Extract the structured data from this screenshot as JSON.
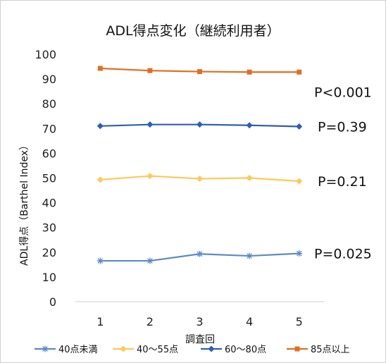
{
  "chart_data": {
    "type": "line",
    "title": "ADL得点変化（継続利用者）",
    "xlabel": "調査回",
    "ylabel": "ADL得点（Barthel Index）",
    "categories": [
      "1",
      "2",
      "3",
      "4",
      "5"
    ],
    "ylim": [
      0,
      100
    ],
    "yticks": [
      "0",
      "10",
      "20",
      "30",
      "40",
      "50",
      "60",
      "70",
      "80",
      "90",
      "100"
    ],
    "grid": false,
    "legend_position": "bottom",
    "series": [
      {
        "name": "40点未満",
        "values": [
          16.5,
          16.5,
          19.3,
          18.5,
          19.5
        ],
        "color": "#5b8ac6",
        "marker": "asterisk"
      },
      {
        "name": "40～55点",
        "values": [
          49.3,
          50.8,
          49.7,
          50.0,
          48.7
        ],
        "color": "#ffc857",
        "marker": "diamond"
      },
      {
        "name": "60～80点",
        "values": [
          71.0,
          71.6,
          71.6,
          71.3,
          70.8
        ],
        "color": "#2e5fb0",
        "marker": "diamond"
      },
      {
        "name": "85点以上",
        "values": [
          94.3,
          93.4,
          93.0,
          92.8,
          92.8
        ],
        "color": "#e07020",
        "marker": "square"
      }
    ],
    "annotations": [
      {
        "text": "P<0.001",
        "series": "85点以上"
      },
      {
        "text": "P=0.39",
        "series": "60～80点"
      },
      {
        "text": "P=0.21",
        "series": "40～55点"
      },
      {
        "text": "P=0.025",
        "series": "40点未満"
      }
    ]
  }
}
